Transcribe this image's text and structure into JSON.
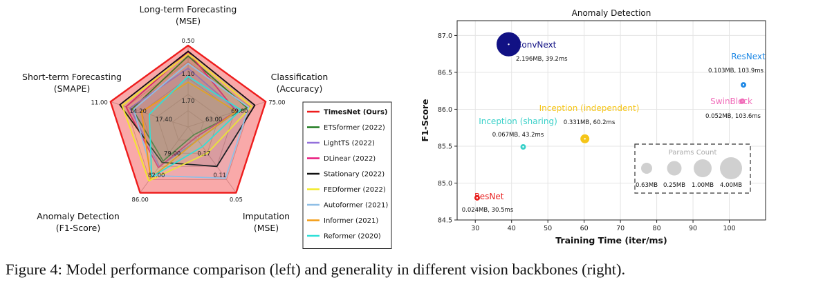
{
  "caption": "Figure 4: Model performance comparison (left) and generality in different vision backbones (right).",
  "chart_data": [
    {
      "type": "radar",
      "axes": [
        {
          "label": [
            "Long-term Forecasting",
            "(MSE)"
          ],
          "outer": "0.50",
          "ticks": [
            "0.50",
            "1.10",
            "1.70"
          ]
        },
        {
          "label": [
            "Classification",
            "(Accuracy)"
          ],
          "outer": "75.00",
          "ticks": [
            "75.00",
            "69.00",
            "63.00"
          ]
        },
        {
          "label": [
            "Imputation",
            "(MSE)"
          ],
          "outer": "0.05",
          "ticks": [
            "0.05",
            "0.11",
            "0.17"
          ]
        },
        {
          "label": [
            "Anomaly Detection",
            "(F1-Score)"
          ],
          "outer": "86.00",
          "ticks": [
            "86.00",
            "82.00",
            "79.00"
          ]
        },
        {
          "label": [
            "Short-term Forecasting",
            "(SMAPE)"
          ],
          "outer": "11.00",
          "ticks": [
            "11.00",
            "14.20",
            "17.40"
          ]
        }
      ],
      "series": [
        {
          "name": "TimesNet (Ours)",
          "color": "#ee1c1c",
          "values": [
            1.0,
            1.0,
            1.0,
            1.0,
            1.0
          ]
        },
        {
          "name": "ETSformer (2022)",
          "color": "#1e7a1e",
          "values": [
            0.87,
            0.76,
            0.12,
            0.52,
            0.72
          ]
        },
        {
          "name": "LightTS (2022)",
          "color": "#9370db",
          "values": [
            0.72,
            0.64,
            0.2,
            0.6,
            0.75
          ]
        },
        {
          "name": "DLinear (2022)",
          "color": "#e8177c",
          "values": [
            0.92,
            0.62,
            0.16,
            0.62,
            0.8
          ]
        },
        {
          "name": "Stationary (2022)",
          "color": "#111111",
          "values": [
            0.93,
            0.86,
            0.6,
            0.54,
            0.88
          ]
        },
        {
          "name": "FEDformer (2022)",
          "color": "#f2ea24",
          "values": [
            0.9,
            0.82,
            0.4,
            0.82,
            0.85
          ]
        },
        {
          "name": "Autoformer (2021)",
          "color": "#8fbfe6",
          "values": [
            0.78,
            0.78,
            0.78,
            0.74,
            0.7
          ]
        },
        {
          "name": "Informer (2021)",
          "color": "#f39c12",
          "values": [
            0.55,
            0.62,
            0.2,
            0.78,
            0.6
          ]
        },
        {
          "name": "Reformer (2020)",
          "color": "#2fe0d8",
          "values": [
            0.62,
            0.68,
            0.3,
            0.76,
            0.5
          ]
        }
      ]
    },
    {
      "type": "scatter",
      "title": "Anomaly Detection",
      "xlabel": "Training Time (iter/ms)",
      "ylabel": "F1-Score",
      "xlim": [
        25,
        110
      ],
      "ylim": [
        84.5,
        87.2
      ],
      "xticks": [
        30,
        40,
        50,
        60,
        70,
        80,
        90,
        100
      ],
      "yticks": [
        "84.5",
        "85.0",
        "85.5",
        "86.0",
        "86.5",
        "87.0"
      ],
      "grid": true,
      "points": [
        {
          "name": "ConvNext",
          "note": "2.196MB, 39.2ms",
          "x": 39.2,
          "y": 86.88,
          "params_mb": 2.196,
          "color": "#111184"
        },
        {
          "name": "ResNext",
          "note": "0.103MB, 103.9ms",
          "x": 103.9,
          "y": 86.33,
          "params_mb": 0.103,
          "color": "#1e88e5"
        },
        {
          "name": "SwinBlock",
          "note": "0.052MB, 103.6ms",
          "x": 103.6,
          "y": 86.11,
          "params_mb": 0.052,
          "color": "#f06ab8"
        },
        {
          "name": "Inception (independent)",
          "note": "0.331MB, 60.2ms",
          "x": 60.2,
          "y": 85.6,
          "params_mb": 0.331,
          "color": "#f5c518"
        },
        {
          "name": "Inception (sharing)",
          "note": "0.067MB, 43.2ms",
          "x": 43.2,
          "y": 85.49,
          "params_mb": 0.067,
          "color": "#38d0c8"
        },
        {
          "name": "ResNet",
          "note": "0.024MB, 30.5ms",
          "x": 30.5,
          "y": 84.8,
          "params_mb": 0.024,
          "color": "#e8201f"
        }
      ],
      "size_legend": {
        "title": "Params Count",
        "entries": [
          {
            "label": "0.63MB",
            "value": 0.63
          },
          {
            "label": "0.25MB",
            "value": 0.25
          },
          {
            "label": "1.00MB",
            "value": 1.0
          },
          {
            "label": "4.00MB",
            "value": 4.0
          }
        ]
      }
    }
  ]
}
